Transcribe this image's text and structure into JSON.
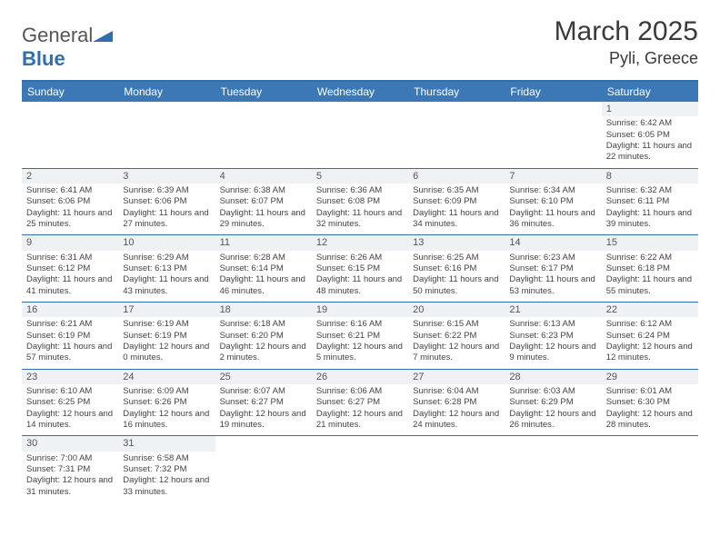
{
  "brand": {
    "part1": "General",
    "part2": "Blue"
  },
  "title": "March 2025",
  "location": "Pyli, Greece",
  "colors": {
    "header_bg": "#3b78b5",
    "header_text": "#ffffff",
    "border": "#2f6fb0",
    "day_num_bg": "#eef2f5",
    "text": "#444444"
  },
  "layout": {
    "columns": 7,
    "rows": 6,
    "weekday_fontsize": 12,
    "daynum_fontsize": 11,
    "info_fontsize": 9.5
  },
  "weekdays": [
    "Sunday",
    "Monday",
    "Tuesday",
    "Wednesday",
    "Thursday",
    "Friday",
    "Saturday"
  ],
  "weeks": [
    [
      null,
      null,
      null,
      null,
      null,
      null,
      {
        "n": "1",
        "sunrise": "Sunrise: 6:42 AM",
        "sunset": "Sunset: 6:05 PM",
        "daylight": "Daylight: 11 hours and 22 minutes."
      }
    ],
    [
      {
        "n": "2",
        "sunrise": "Sunrise: 6:41 AM",
        "sunset": "Sunset: 6:06 PM",
        "daylight": "Daylight: 11 hours and 25 minutes."
      },
      {
        "n": "3",
        "sunrise": "Sunrise: 6:39 AM",
        "sunset": "Sunset: 6:06 PM",
        "daylight": "Daylight: 11 hours and 27 minutes."
      },
      {
        "n": "4",
        "sunrise": "Sunrise: 6:38 AM",
        "sunset": "Sunset: 6:07 PM",
        "daylight": "Daylight: 11 hours and 29 minutes."
      },
      {
        "n": "5",
        "sunrise": "Sunrise: 6:36 AM",
        "sunset": "Sunset: 6:08 PM",
        "daylight": "Daylight: 11 hours and 32 minutes."
      },
      {
        "n": "6",
        "sunrise": "Sunrise: 6:35 AM",
        "sunset": "Sunset: 6:09 PM",
        "daylight": "Daylight: 11 hours and 34 minutes."
      },
      {
        "n": "7",
        "sunrise": "Sunrise: 6:34 AM",
        "sunset": "Sunset: 6:10 PM",
        "daylight": "Daylight: 11 hours and 36 minutes."
      },
      {
        "n": "8",
        "sunrise": "Sunrise: 6:32 AM",
        "sunset": "Sunset: 6:11 PM",
        "daylight": "Daylight: 11 hours and 39 minutes."
      }
    ],
    [
      {
        "n": "9",
        "sunrise": "Sunrise: 6:31 AM",
        "sunset": "Sunset: 6:12 PM",
        "daylight": "Daylight: 11 hours and 41 minutes."
      },
      {
        "n": "10",
        "sunrise": "Sunrise: 6:29 AM",
        "sunset": "Sunset: 6:13 PM",
        "daylight": "Daylight: 11 hours and 43 minutes."
      },
      {
        "n": "11",
        "sunrise": "Sunrise: 6:28 AM",
        "sunset": "Sunset: 6:14 PM",
        "daylight": "Daylight: 11 hours and 46 minutes."
      },
      {
        "n": "12",
        "sunrise": "Sunrise: 6:26 AM",
        "sunset": "Sunset: 6:15 PM",
        "daylight": "Daylight: 11 hours and 48 minutes."
      },
      {
        "n": "13",
        "sunrise": "Sunrise: 6:25 AM",
        "sunset": "Sunset: 6:16 PM",
        "daylight": "Daylight: 11 hours and 50 minutes."
      },
      {
        "n": "14",
        "sunrise": "Sunrise: 6:23 AM",
        "sunset": "Sunset: 6:17 PM",
        "daylight": "Daylight: 11 hours and 53 minutes."
      },
      {
        "n": "15",
        "sunrise": "Sunrise: 6:22 AM",
        "sunset": "Sunset: 6:18 PM",
        "daylight": "Daylight: 11 hours and 55 minutes."
      }
    ],
    [
      {
        "n": "16",
        "sunrise": "Sunrise: 6:21 AM",
        "sunset": "Sunset: 6:19 PM",
        "daylight": "Daylight: 11 hours and 57 minutes."
      },
      {
        "n": "17",
        "sunrise": "Sunrise: 6:19 AM",
        "sunset": "Sunset: 6:19 PM",
        "daylight": "Daylight: 12 hours and 0 minutes."
      },
      {
        "n": "18",
        "sunrise": "Sunrise: 6:18 AM",
        "sunset": "Sunset: 6:20 PM",
        "daylight": "Daylight: 12 hours and 2 minutes."
      },
      {
        "n": "19",
        "sunrise": "Sunrise: 6:16 AM",
        "sunset": "Sunset: 6:21 PM",
        "daylight": "Daylight: 12 hours and 5 minutes."
      },
      {
        "n": "20",
        "sunrise": "Sunrise: 6:15 AM",
        "sunset": "Sunset: 6:22 PM",
        "daylight": "Daylight: 12 hours and 7 minutes."
      },
      {
        "n": "21",
        "sunrise": "Sunrise: 6:13 AM",
        "sunset": "Sunset: 6:23 PM",
        "daylight": "Daylight: 12 hours and 9 minutes."
      },
      {
        "n": "22",
        "sunrise": "Sunrise: 6:12 AM",
        "sunset": "Sunset: 6:24 PM",
        "daylight": "Daylight: 12 hours and 12 minutes."
      }
    ],
    [
      {
        "n": "23",
        "sunrise": "Sunrise: 6:10 AM",
        "sunset": "Sunset: 6:25 PM",
        "daylight": "Daylight: 12 hours and 14 minutes."
      },
      {
        "n": "24",
        "sunrise": "Sunrise: 6:09 AM",
        "sunset": "Sunset: 6:26 PM",
        "daylight": "Daylight: 12 hours and 16 minutes."
      },
      {
        "n": "25",
        "sunrise": "Sunrise: 6:07 AM",
        "sunset": "Sunset: 6:27 PM",
        "daylight": "Daylight: 12 hours and 19 minutes."
      },
      {
        "n": "26",
        "sunrise": "Sunrise: 6:06 AM",
        "sunset": "Sunset: 6:27 PM",
        "daylight": "Daylight: 12 hours and 21 minutes."
      },
      {
        "n": "27",
        "sunrise": "Sunrise: 6:04 AM",
        "sunset": "Sunset: 6:28 PM",
        "daylight": "Daylight: 12 hours and 24 minutes."
      },
      {
        "n": "28",
        "sunrise": "Sunrise: 6:03 AM",
        "sunset": "Sunset: 6:29 PM",
        "daylight": "Daylight: 12 hours and 26 minutes."
      },
      {
        "n": "29",
        "sunrise": "Sunrise: 6:01 AM",
        "sunset": "Sunset: 6:30 PM",
        "daylight": "Daylight: 12 hours and 28 minutes."
      }
    ],
    [
      {
        "n": "30",
        "sunrise": "Sunrise: 7:00 AM",
        "sunset": "Sunset: 7:31 PM",
        "daylight": "Daylight: 12 hours and 31 minutes."
      },
      {
        "n": "31",
        "sunrise": "Sunrise: 6:58 AM",
        "sunset": "Sunset: 7:32 PM",
        "daylight": "Daylight: 12 hours and 33 minutes."
      },
      null,
      null,
      null,
      null,
      null
    ]
  ]
}
